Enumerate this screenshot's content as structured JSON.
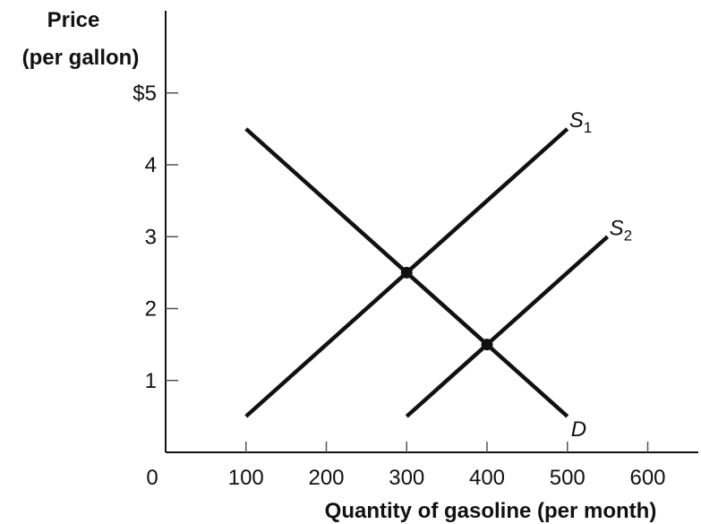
{
  "chart_data": {
    "type": "line",
    "ylabel_lines": [
      "Price",
      "(per gallon)"
    ],
    "xlabel": "Quantity of gasoline (per month)",
    "origin_label": "0",
    "xlim": [
      0,
      700
    ],
    "ylim": [
      0,
      6
    ],
    "x_ticks": [
      {
        "value": 100,
        "label": "100"
      },
      {
        "value": 200,
        "label": "200"
      },
      {
        "value": 300,
        "label": "300"
      },
      {
        "value": 400,
        "label": "400"
      },
      {
        "value": 500,
        "label": "500"
      },
      {
        "value": 600,
        "label": "600"
      }
    ],
    "y_ticks": [
      {
        "value": 1,
        "label": "1"
      },
      {
        "value": 2,
        "label": "2"
      },
      {
        "value": 3,
        "label": "3"
      },
      {
        "value": 4,
        "label": "4"
      },
      {
        "value": 5,
        "label": "$5"
      }
    ],
    "series": [
      {
        "name": "S1",
        "label_main": "S",
        "label_sub": "1",
        "points": [
          {
            "x": 100,
            "y": 0.5
          },
          {
            "x": 500,
            "y": 4.5
          }
        ]
      },
      {
        "name": "S2",
        "label_main": "S",
        "label_sub": "2",
        "points": [
          {
            "x": 300,
            "y": 0.5
          },
          {
            "x": 550,
            "y": 3.0
          }
        ]
      },
      {
        "name": "D",
        "label_main": "D",
        "label_sub": "",
        "points": [
          {
            "x": 100,
            "y": 4.5
          },
          {
            "x": 500,
            "y": 0.5
          }
        ]
      }
    ],
    "equilibria": [
      {
        "x": 300,
        "y": 2.5
      },
      {
        "x": 400,
        "y": 1.5
      }
    ]
  }
}
